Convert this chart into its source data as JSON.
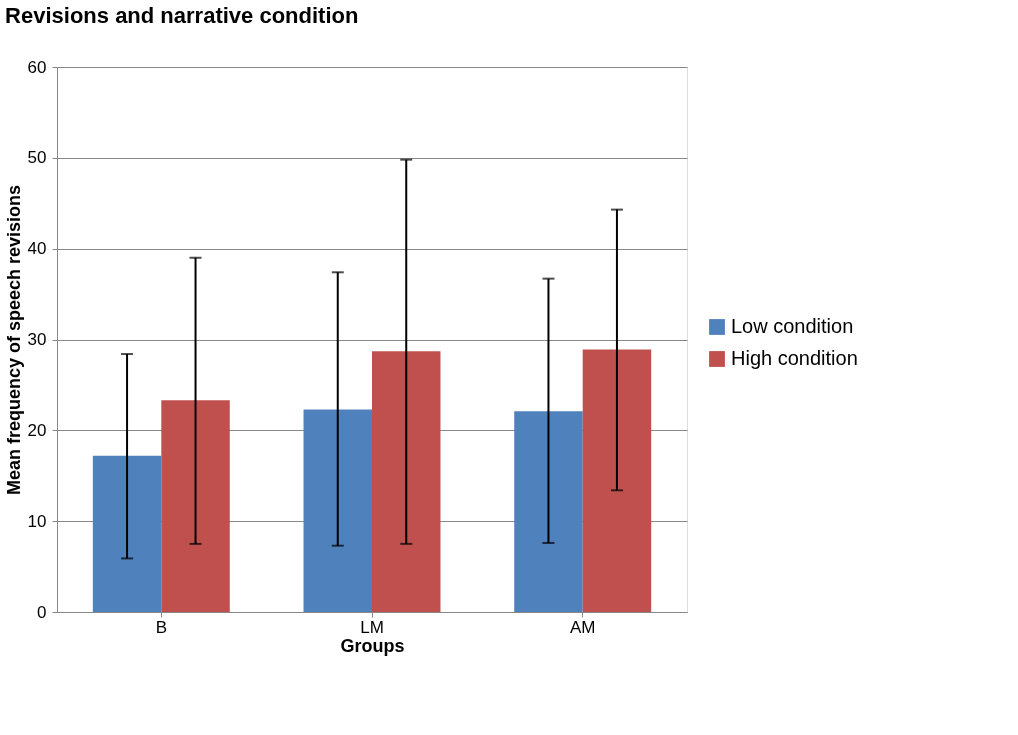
{
  "chart_data": {
    "type": "bar",
    "title": "Revisions and narrative condition",
    "xlabel": "Groups",
    "ylabel": "Mean frequency of speech revisions",
    "categories": [
      "B",
      "LM",
      "AM"
    ],
    "series": [
      {
        "name": "Low condition",
        "color": "#4f81bd",
        "values": [
          17.2,
          22.3,
          22.1
        ],
        "errors": [
          [
            5.9,
            28.4
          ],
          [
            7.3,
            37.4
          ],
          [
            7.6,
            36.7
          ]
        ]
      },
      {
        "name": "High condition",
        "color": "#c0504d",
        "values": [
          23.3,
          28.7,
          28.9
        ],
        "errors": [
          [
            7.5,
            39.0
          ],
          [
            7.5,
            49.8
          ],
          [
            13.4,
            44.3
          ]
        ]
      }
    ],
    "ylim": [
      0,
      60
    ],
    "yticks": [
      0,
      10,
      20,
      30,
      40,
      50,
      60
    ],
    "grid": "y",
    "legend": "right"
  }
}
